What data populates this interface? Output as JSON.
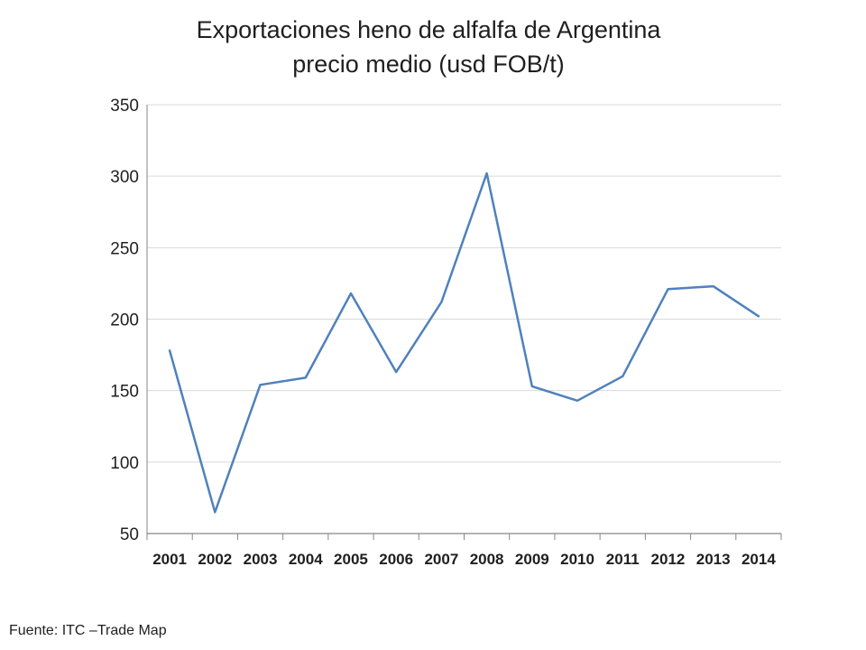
{
  "chart_data": {
    "type": "line",
    "title": "Exportaciones heno de alfalfa de Argentina",
    "subtitle": "precio medio (usd FOB/t)",
    "xlabel": "",
    "ylabel": "",
    "categories": [
      "2001",
      "2002",
      "2003",
      "2004",
      "2005",
      "2006",
      "2007",
      "2008",
      "2009",
      "2010",
      "2011",
      "2012",
      "2013",
      "2014"
    ],
    "series": [
      {
        "values": [
          178,
          65,
          154,
          159,
          218,
          163,
          212,
          302,
          153,
          143,
          160,
          221,
          223,
          202
        ]
      }
    ],
    "ylim": [
      50,
      350
    ],
    "yticks": [
      50,
      100,
      150,
      200,
      250,
      300,
      350
    ],
    "grid": true,
    "legend": "none",
    "line_color": "#4f81bd"
  },
  "footer": {
    "source": "Fuente: ITC –Trade Map"
  }
}
